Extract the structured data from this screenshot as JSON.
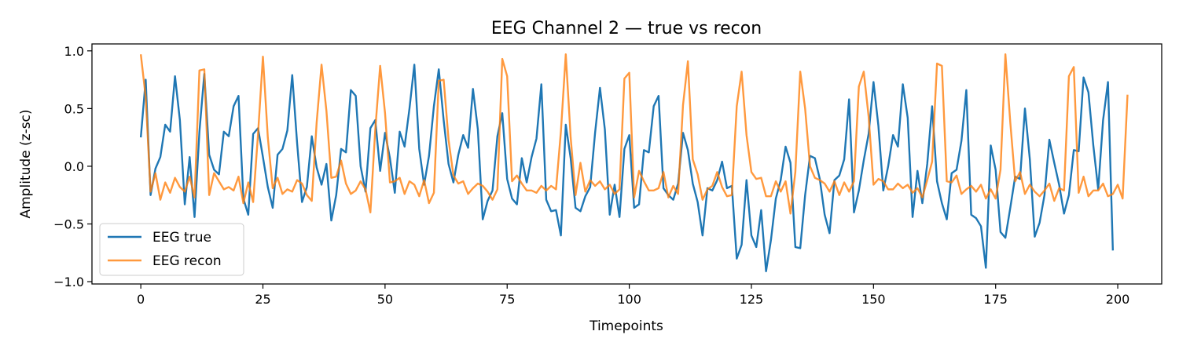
{
  "chart_data": {
    "type": "line",
    "title": "EEG Channel 2 — true vs recon",
    "xlabel": "Timepoints",
    "ylabel": "Amplitude (z-sc)",
    "xlim": [
      -10,
      209
    ],
    "ylim": [
      -1.02,
      1.06
    ],
    "xticks": [
      0,
      25,
      50,
      75,
      100,
      125,
      150,
      175,
      200
    ],
    "yticks": [
      -1.0,
      -0.5,
      0.0,
      0.5,
      1.0
    ],
    "ytick_labels": [
      "−1.0",
      "−0.5",
      "0.0",
      "0.5",
      "1.0"
    ],
    "grid": false,
    "legend_position": "lower-left",
    "series": [
      {
        "name": "EEG true",
        "color": "#1f77b4",
        "values": [
          0.25,
          0.75,
          -0.25,
          -0.02,
          0.08,
          0.36,
          0.3,
          0.78,
          0.4,
          -0.33,
          0.08,
          -0.44,
          0.3,
          0.8,
          0.1,
          -0.03,
          -0.07,
          0.3,
          0.26,
          0.52,
          0.61,
          -0.28,
          -0.42,
          0.28,
          0.33,
          0.08,
          -0.18,
          -0.36,
          0.1,
          0.15,
          0.31,
          0.79,
          0.2,
          -0.31,
          -0.18,
          0.26,
          -0.01,
          -0.16,
          0.02,
          -0.47,
          -0.25,
          0.15,
          0.12,
          0.66,
          0.61,
          0.0,
          -0.22,
          0.33,
          0.4,
          -0.04,
          0.29,
          0.07,
          -0.23,
          0.3,
          0.17,
          0.5,
          0.88,
          0.15,
          -0.16,
          0.09,
          0.52,
          0.84,
          0.4,
          0.02,
          -0.14,
          0.1,
          0.27,
          0.16,
          0.67,
          0.32,
          -0.46,
          -0.3,
          -0.21,
          0.26,
          0.46,
          -0.11,
          -0.28,
          -0.33,
          0.07,
          -0.14,
          0.08,
          0.24,
          0.71,
          -0.29,
          -0.39,
          -0.38,
          -0.6,
          0.36,
          0.07,
          -0.36,
          -0.39,
          -0.26,
          -0.18,
          0.29,
          0.68,
          0.32,
          -0.42,
          -0.16,
          -0.44,
          0.15,
          0.27,
          -0.36,
          -0.33,
          0.14,
          0.12,
          0.52,
          0.61,
          -0.19,
          -0.25,
          -0.29,
          -0.15,
          0.29,
          0.14,
          -0.15,
          -0.31,
          -0.6,
          -0.19,
          -0.21,
          -0.12,
          0.04,
          -0.19,
          -0.17,
          -0.8,
          -0.68,
          -0.12,
          -0.6,
          -0.7,
          -0.38,
          -0.91,
          -0.64,
          -0.28,
          -0.12,
          0.17,
          0.03,
          -0.7,
          -0.71,
          -0.25,
          0.09,
          0.07,
          -0.11,
          -0.42,
          -0.58,
          -0.12,
          -0.08,
          0.06,
          0.58,
          -0.4,
          -0.21,
          0.05,
          0.28,
          0.73,
          0.35,
          -0.21,
          0.0,
          0.27,
          0.17,
          0.71,
          0.42,
          -0.44,
          -0.04,
          -0.32,
          0.02,
          0.52,
          -0.13,
          -0.32,
          -0.46,
          -0.06,
          -0.03,
          0.22,
          0.66,
          -0.42,
          -0.45,
          -0.52,
          -0.88,
          0.18,
          -0.03,
          -0.57,
          -0.62,
          -0.36,
          -0.09,
          -0.11,
          0.5,
          0.06,
          -0.61,
          -0.49,
          -0.25,
          0.23,
          0.03,
          -0.16,
          -0.41,
          -0.25,
          0.14,
          0.13,
          0.77,
          0.64,
          0.18,
          -0.2,
          0.4,
          0.73,
          -0.73
        ]
      },
      {
        "name": "EEG recon",
        "color": "#ff7f0e",
        "values": [
          0.97,
          0.6,
          -0.22,
          -0.06,
          -0.29,
          -0.14,
          -0.23,
          -0.1,
          -0.18,
          -0.22,
          -0.09,
          -0.27,
          0.83,
          0.84,
          -0.25,
          -0.06,
          -0.13,
          -0.2,
          -0.18,
          -0.21,
          -0.09,
          -0.32,
          -0.14,
          -0.31,
          0.28,
          0.95,
          0.25,
          -0.19,
          -0.1,
          -0.24,
          -0.2,
          -0.22,
          -0.12,
          -0.15,
          -0.25,
          -0.3,
          0.38,
          0.88,
          0.48,
          -0.1,
          -0.09,
          0.05,
          -0.15,
          -0.24,
          -0.21,
          -0.13,
          -0.2,
          -0.4,
          0.32,
          0.87,
          0.46,
          -0.14,
          -0.13,
          -0.1,
          -0.24,
          -0.13,
          -0.16,
          -0.26,
          -0.12,
          -0.32,
          -0.23,
          0.74,
          0.75,
          0.23,
          -0.08,
          -0.15,
          -0.13,
          -0.24,
          -0.19,
          -0.15,
          -0.17,
          -0.22,
          -0.29,
          -0.2,
          0.93,
          0.78,
          -0.13,
          -0.08,
          -0.15,
          -0.21,
          -0.21,
          -0.23,
          -0.17,
          -0.21,
          -0.17,
          -0.2,
          0.3,
          0.97,
          0.25,
          -0.25,
          0.03,
          -0.22,
          -0.12,
          -0.17,
          -0.13,
          -0.2,
          -0.16,
          -0.24,
          -0.2,
          0.76,
          0.81,
          -0.27,
          -0.04,
          -0.13,
          -0.21,
          -0.21,
          -0.19,
          -0.05,
          -0.27,
          -0.17,
          -0.24,
          0.53,
          0.91,
          0.06,
          -0.07,
          -0.29,
          -0.2,
          -0.17,
          -0.05,
          -0.18,
          -0.26,
          -0.25,
          0.52,
          0.82,
          0.27,
          -0.05,
          -0.11,
          -0.1,
          -0.26,
          -0.26,
          -0.13,
          -0.22,
          -0.13,
          -0.41,
          -0.05,
          0.82,
          0.5,
          0.0,
          -0.1,
          -0.12,
          -0.15,
          -0.22,
          -0.13,
          -0.25,
          -0.14,
          -0.22,
          -0.13,
          0.69,
          0.82,
          0.43,
          -0.16,
          -0.11,
          -0.13,
          -0.2,
          -0.2,
          -0.15,
          -0.19,
          -0.16,
          -0.23,
          -0.19,
          -0.27,
          -0.12,
          0.04,
          0.89,
          0.87,
          -0.13,
          -0.14,
          -0.08,
          -0.24,
          -0.2,
          -0.17,
          -0.22,
          -0.16,
          -0.28,
          -0.2,
          -0.28,
          -0.03,
          0.97,
          0.38,
          -0.13,
          -0.05,
          -0.24,
          -0.16,
          -0.22,
          -0.26,
          -0.21,
          -0.15,
          -0.3,
          -0.19,
          -0.21,
          0.78,
          0.86,
          -0.23,
          -0.09,
          -0.26,
          -0.21,
          -0.21,
          -0.15,
          -0.26,
          -0.24,
          -0.16,
          -0.28,
          0.62
        ]
      }
    ]
  }
}
